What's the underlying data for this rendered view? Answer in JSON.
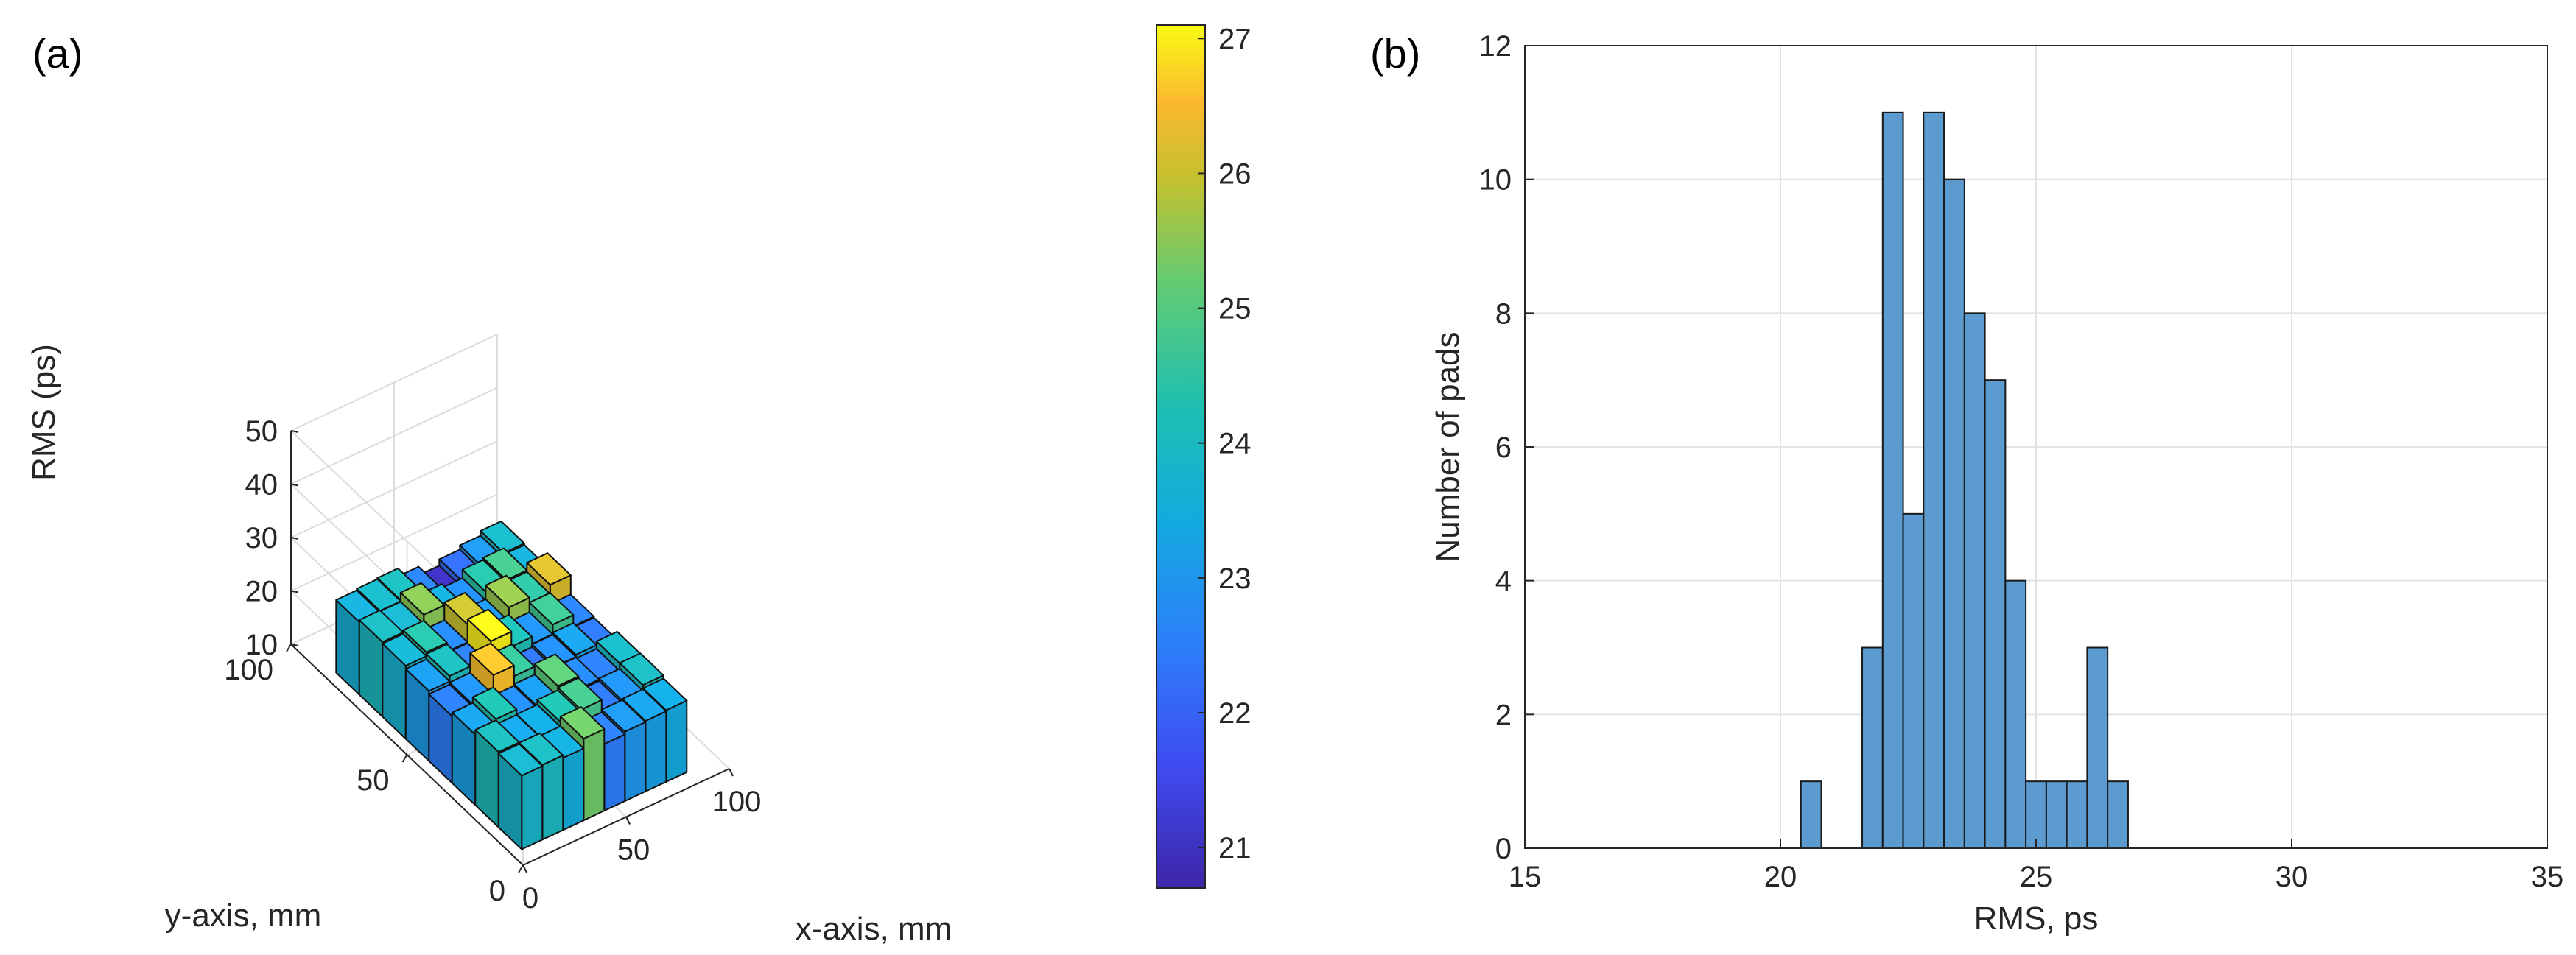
{
  "panels": {
    "a": "(a)",
    "b": "(b)"
  },
  "chart_data": [
    {
      "type": "bar3d",
      "panel": "(a)",
      "xlabel": "x-axis, mm",
      "ylabel": "y-axis, mm",
      "zlabel": "RMS (ps)",
      "xticks": [
        "0",
        "50",
        "100"
      ],
      "yticks": [
        "0",
        "50",
        "100"
      ],
      "zticks": [
        "10",
        "20",
        "30",
        "40",
        "50"
      ],
      "xlim": [
        0,
        100
      ],
      "ylim": [
        0,
        100
      ],
      "zlim": [
        10,
        50
      ],
      "colorbar": {
        "ticks": [
          "21",
          "22",
          "23",
          "24",
          "25",
          "26",
          "27"
        ],
        "range": [
          20.7,
          27.1
        ]
      },
      "grid": true,
      "x_centers": [
        10,
        20,
        30,
        40,
        50,
        60,
        70,
        80
      ],
      "y_centers": [
        10,
        20,
        30,
        40,
        50,
        60,
        70,
        80
      ],
      "values": [
        [
          23.8,
          24.0,
          23.5,
          25.3,
          22.5,
          23.0,
          23.2,
          23.4
        ],
        [
          24.1,
          23.3,
          23.4,
          24.3,
          24.8,
          22.4,
          22.9,
          24.0
        ],
        [
          23.2,
          24.3,
          22.8,
          23.1,
          25.1,
          22.7,
          22.5,
          23.9
        ],
        [
          22.5,
          22.9,
          26.6,
          24.6,
          22.3,
          22.8,
          23.2,
          22.4
        ],
        [
          23.1,
          24.1,
          22.5,
          27.0,
          24.2,
          22.9,
          24.7,
          22.6
        ],
        [
          23.7,
          24.4,
          22.7,
          26.0,
          23.0,
          25.6,
          24.5,
          26.2
        ],
        [
          24.0,
          23.8,
          25.5,
          23.5,
          22.8,
          24.4,
          24.8,
          23.6
        ],
        [
          23.6,
          23.9,
          24.1,
          22.6,
          21.0,
          22.2,
          23.0,
          23.9
        ]
      ]
    },
    {
      "type": "histogram",
      "panel": "(b)",
      "xlabel": "RMS, ps",
      "ylabel": "Number of pads",
      "xlim": [
        15,
        35
      ],
      "ylim": [
        0,
        12
      ],
      "xticks": [
        "15",
        "20",
        "25",
        "30",
        "35"
      ],
      "yticks": [
        "0",
        "2",
        "4",
        "6",
        "8",
        "10",
        "12"
      ],
      "grid": true,
      "bin_edges": [
        20.4,
        20.8,
        21.2,
        21.6,
        22.0,
        22.4,
        22.8,
        23.2,
        23.6,
        24.0,
        24.4,
        24.8,
        25.2,
        25.6,
        26.0,
        26.4,
        26.8,
        27.2
      ],
      "counts": [
        1,
        0,
        0,
        3,
        11,
        5,
        11,
        10,
        8,
        7,
        4,
        1,
        1,
        1,
        3,
        1,
        0
      ],
      "bar_color": "#5b9bd0",
      "edge_color": "#1a1a1a"
    }
  ]
}
